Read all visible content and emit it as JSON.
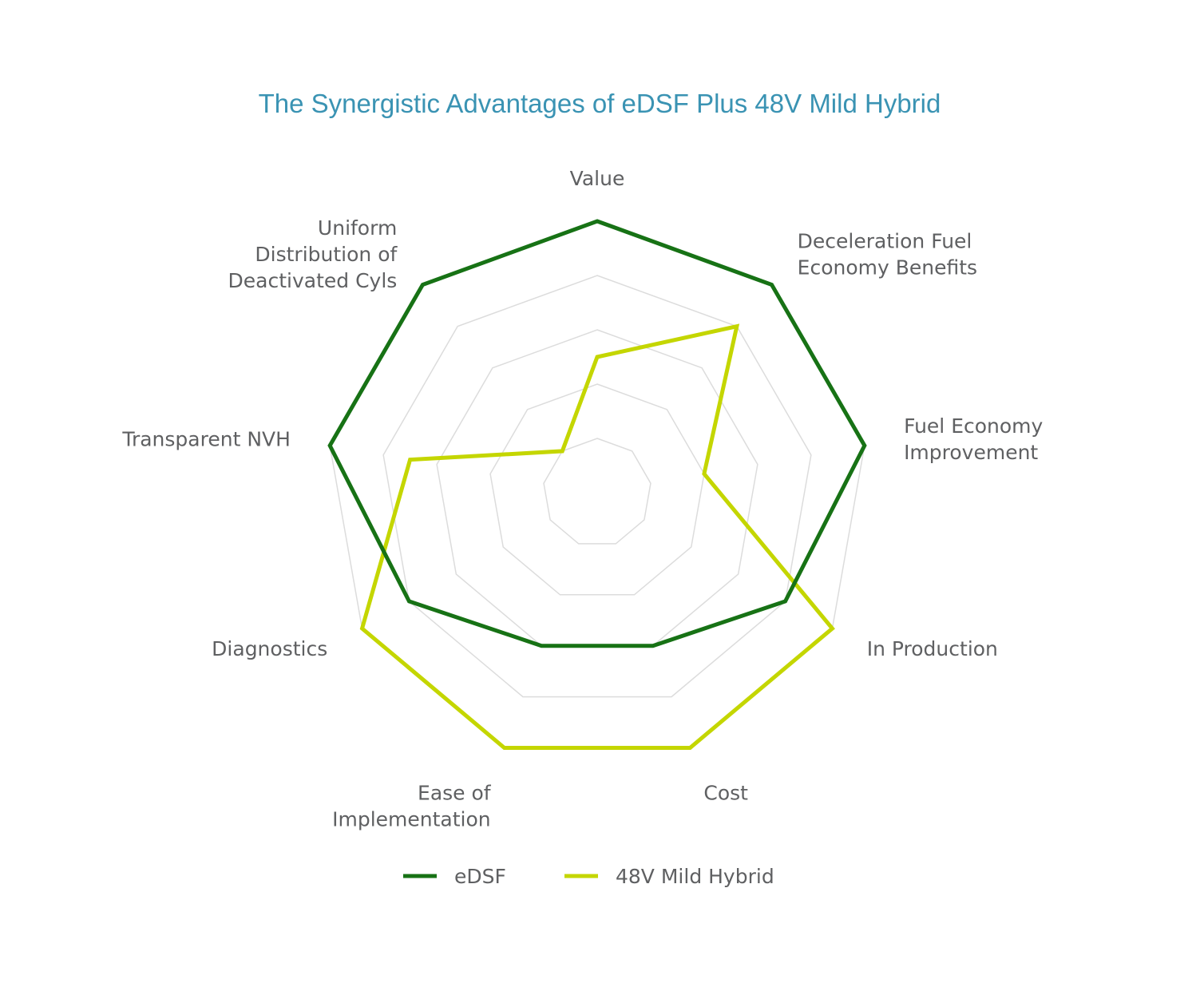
{
  "chart_data": {
    "type": "radar",
    "title": "The Synergistic Advantages of eDSF Plus 48V Mild Hybrid",
    "categories": [
      [
        "Value"
      ],
      [
        "Deceleration Fuel",
        "Economy Benefits"
      ],
      [
        "Fuel Economy",
        "Improvement"
      ],
      [
        "In Production"
      ],
      [
        "Cost"
      ],
      [
        "Ease of",
        "Implementation"
      ],
      [
        "Diagnostics"
      ],
      [
        "Transparent NVH"
      ],
      [
        "Uniform",
        "Distribution of",
        "Deactivated Cyls"
      ]
    ],
    "rlim": [
      0,
      5
    ],
    "grid_levels": [
      1,
      2,
      3,
      4,
      5
    ],
    "grid": true,
    "legend_position": "bottom",
    "series": [
      {
        "name": "eDSF",
        "color": "#177215",
        "values": [
          5,
          5,
          5,
          4,
          3,
          3,
          4,
          5,
          5
        ]
      },
      {
        "name": "48V Mild Hybrid",
        "color": "#c4d600",
        "values": [
          2.5,
          4,
          2,
          5,
          5,
          5,
          5,
          3.5,
          1
        ]
      }
    ],
    "title_color": "#3a93b3"
  }
}
